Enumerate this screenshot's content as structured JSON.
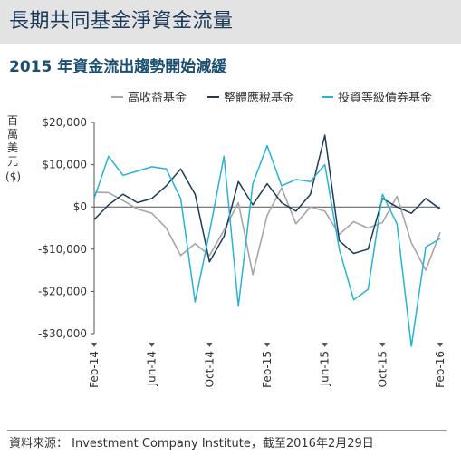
{
  "page": {
    "title": "長期共同基金淨資金流量",
    "subtitle": "2015 年資金流出趨勢開始減緩",
    "source": "資料來源： Investment Company Institute，截至2016年2月29日"
  },
  "colors": {
    "title_band": "#e3e3e3",
    "title_text": "#1b3a5a",
    "subtitle_text": "#1b4f72",
    "high_yield": "#a6a6a6",
    "municipal": "#1f3b57",
    "investment_grade": "#26b3d6",
    "axis": "#555555"
  },
  "chart_data": {
    "type": "line",
    "title": "2015 年資金流出趨勢開始減緩",
    "ylabel": "百萬美元",
    "yunit": "($)",
    "xlabel": "",
    "ylim": [
      -30000,
      20000
    ],
    "yticks": [
      20000,
      10000,
      0,
      -10000,
      -20000,
      -30000
    ],
    "ytick_labels": [
      "$20,000",
      "$10,000",
      "$0",
      "-$10,000",
      "-$20,000",
      "-$30,000"
    ],
    "xtick_labels": [
      "Feb-14",
      "Jun-14",
      "Oct-14",
      "Feb-15",
      "Jun-15",
      "Oct-15",
      "Feb-16"
    ],
    "xtick_index": [
      0,
      4,
      8,
      12,
      16,
      20,
      24
    ],
    "x": [
      "2014-02",
      "2014-03",
      "2014-04",
      "2014-05",
      "2014-06",
      "2014-07",
      "2014-08",
      "2014-09",
      "2014-10",
      "2014-11",
      "2014-12",
      "2015-01",
      "2015-02",
      "2015-03",
      "2015-04",
      "2015-05",
      "2015-06",
      "2015-07",
      "2015-08",
      "2015-09",
      "2015-10",
      "2015-11",
      "2015-12",
      "2016-01",
      "2016-02"
    ],
    "grid": false,
    "legend_position": "top",
    "series": [
      {
        "name": "高收益基金",
        "values": [
          3500,
          3400,
          1500,
          -500,
          -1500,
          -5000,
          -11500,
          -8700,
          -11500,
          -5500,
          1000,
          -16000,
          -2000,
          4500,
          -4000,
          0,
          -1000,
          -6500,
          -3500,
          -5000,
          -3700,
          2500,
          -8500,
          -15000,
          -6000
        ]
      },
      {
        "name": "整體應稅基金",
        "values": [
          -3000,
          500,
          3000,
          1000,
          2000,
          5000,
          9000,
          3000,
          -13000,
          -7000,
          6000,
          500,
          5500,
          1000,
          -1000,
          3000,
          17000,
          -8000,
          -11000,
          -10000,
          2000,
          0,
          -1500,
          2000,
          -500
        ]
      },
      {
        "name": "投資等級債券基金",
        "values": [
          2000,
          12000,
          7500,
          8500,
          9500,
          9000,
          2000,
          -22500,
          -6000,
          12000,
          -23500,
          5500,
          14500,
          5000,
          6500,
          6000,
          10000,
          -10000,
          -22000,
          -19500,
          3000,
          -4000,
          -33000,
          -9500,
          -7500
        ]
      }
    ]
  }
}
